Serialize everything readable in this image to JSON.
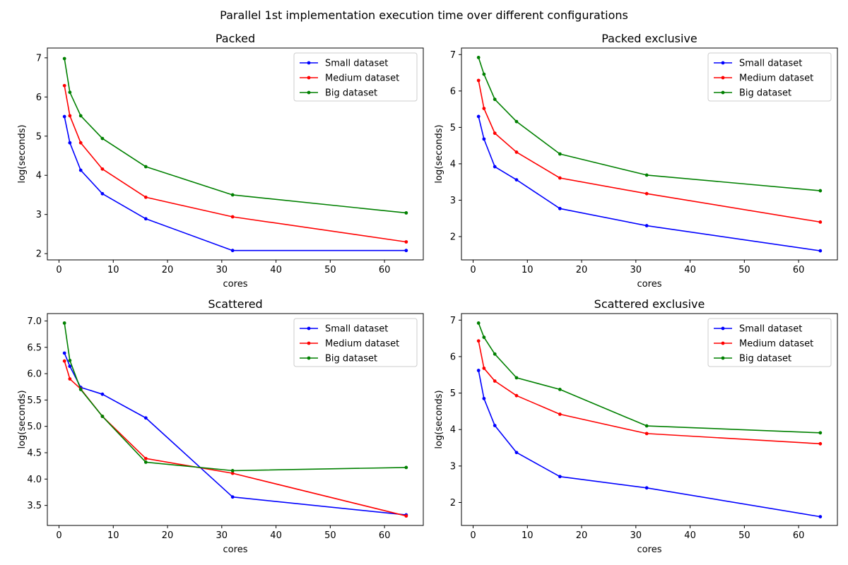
{
  "figure": {
    "title": "Parallel 1st implementation execution time over different configurations"
  },
  "chart_data": [
    {
      "type": "line",
      "title": "Packed",
      "xlabel": "cores",
      "ylabel": "log(seconds)",
      "xlim": [
        -2.15,
        67.15
      ],
      "ylim": [
        1.84,
        7.25
      ],
      "xticks": [
        0,
        10,
        20,
        30,
        40,
        50,
        60
      ],
      "yticks": [
        2,
        3,
        4,
        5,
        6,
        7
      ],
      "ytick_labels": [
        "2",
        "3",
        "4",
        "5",
        "6",
        "7"
      ],
      "legend_position": "top-right",
      "x": [
        1,
        2,
        4,
        8,
        16,
        32,
        64
      ],
      "series": [
        {
          "name": "Small dataset",
          "color": "#0000ff",
          "values": [
            5.5,
            4.83,
            4.13,
            3.53,
            2.89,
            2.08,
            2.08
          ]
        },
        {
          "name": "Medium dataset",
          "color": "#ff0000",
          "values": [
            6.29,
            5.52,
            4.83,
            4.16,
            3.44,
            2.94,
            2.3
          ]
        },
        {
          "name": "Big dataset",
          "color": "#008000",
          "values": [
            6.98,
            6.12,
            5.52,
            4.94,
            4.22,
            3.5,
            3.04
          ]
        }
      ]
    },
    {
      "type": "line",
      "title": "Packed exclusive",
      "xlabel": "cores",
      "ylabel": "log(seconds)",
      "xlim": [
        -2.15,
        67.15
      ],
      "ylim": [
        1.36,
        7.18
      ],
      "xticks": [
        0,
        10,
        20,
        30,
        40,
        50,
        60
      ],
      "yticks": [
        2,
        3,
        4,
        5,
        6,
        7
      ],
      "ytick_labels": [
        "2",
        "3",
        "4",
        "5",
        "6",
        "7"
      ],
      "legend_position": "top-right",
      "x": [
        1,
        2,
        4,
        8,
        16,
        32,
        64
      ],
      "series": [
        {
          "name": "Small dataset",
          "color": "#0000ff",
          "values": [
            5.3,
            4.68,
            3.92,
            3.56,
            2.77,
            2.3,
            1.61
          ]
        },
        {
          "name": "Medium dataset",
          "color": "#ff0000",
          "values": [
            6.29,
            5.52,
            4.84,
            4.32,
            3.61,
            3.18,
            2.4
          ]
        },
        {
          "name": "Big dataset",
          "color": "#008000",
          "values": [
            6.92,
            6.46,
            5.77,
            5.16,
            4.27,
            3.69,
            3.26
          ]
        }
      ]
    },
    {
      "type": "line",
      "title": "Scattered",
      "xlabel": "cores",
      "ylabel": "log(seconds)",
      "xlim": [
        -2.15,
        67.15
      ],
      "ylim": [
        3.12,
        7.14
      ],
      "xticks": [
        0,
        10,
        20,
        30,
        40,
        50,
        60
      ],
      "yticks": [
        3.5,
        4.0,
        4.5,
        5.0,
        5.5,
        6.0,
        6.5,
        7.0
      ],
      "ytick_labels": [
        "3.5",
        "4.0",
        "4.5",
        "5.0",
        "5.5",
        "6.0",
        "6.5",
        "7.0"
      ],
      "legend_position": "top-right",
      "x": [
        1,
        2,
        4,
        8,
        16,
        32,
        64
      ],
      "series": [
        {
          "name": "Small dataset",
          "color": "#0000ff",
          "values": [
            6.39,
            6.14,
            5.74,
            5.61,
            5.16,
            3.66,
            3.32
          ]
        },
        {
          "name": "Medium dataset",
          "color": "#ff0000",
          "values": [
            6.24,
            5.9,
            5.71,
            5.19,
            4.39,
            4.11,
            3.3
          ]
        },
        {
          "name": "Big dataset",
          "color": "#008000",
          "values": [
            6.96,
            6.25,
            5.7,
            5.19,
            4.32,
            4.16,
            4.22
          ]
        }
      ]
    },
    {
      "type": "line",
      "title": "Scattered exclusive",
      "xlabel": "cores",
      "ylabel": "log(seconds)",
      "xlim": [
        -2.15,
        67.15
      ],
      "ylim": [
        1.37,
        7.18
      ],
      "xticks": [
        0,
        10,
        20,
        30,
        40,
        50,
        60
      ],
      "yticks": [
        2,
        3,
        4,
        5,
        6,
        7
      ],
      "ytick_labels": [
        "2",
        "3",
        "4",
        "5",
        "6",
        "7"
      ],
      "legend_position": "top-right",
      "x": [
        1,
        2,
        4,
        8,
        16,
        32,
        64
      ],
      "series": [
        {
          "name": "Small dataset",
          "color": "#0000ff",
          "values": [
            5.62,
            4.85,
            4.11,
            3.37,
            2.71,
            2.4,
            1.61
          ]
        },
        {
          "name": "Medium dataset",
          "color": "#ff0000",
          "values": [
            6.43,
            5.68,
            5.33,
            4.93,
            4.42,
            3.89,
            3.61
          ]
        },
        {
          "name": "Big dataset",
          "color": "#008000",
          "values": [
            6.92,
            6.53,
            6.07,
            5.42,
            5.1,
            4.1,
            3.91
          ]
        }
      ]
    }
  ]
}
